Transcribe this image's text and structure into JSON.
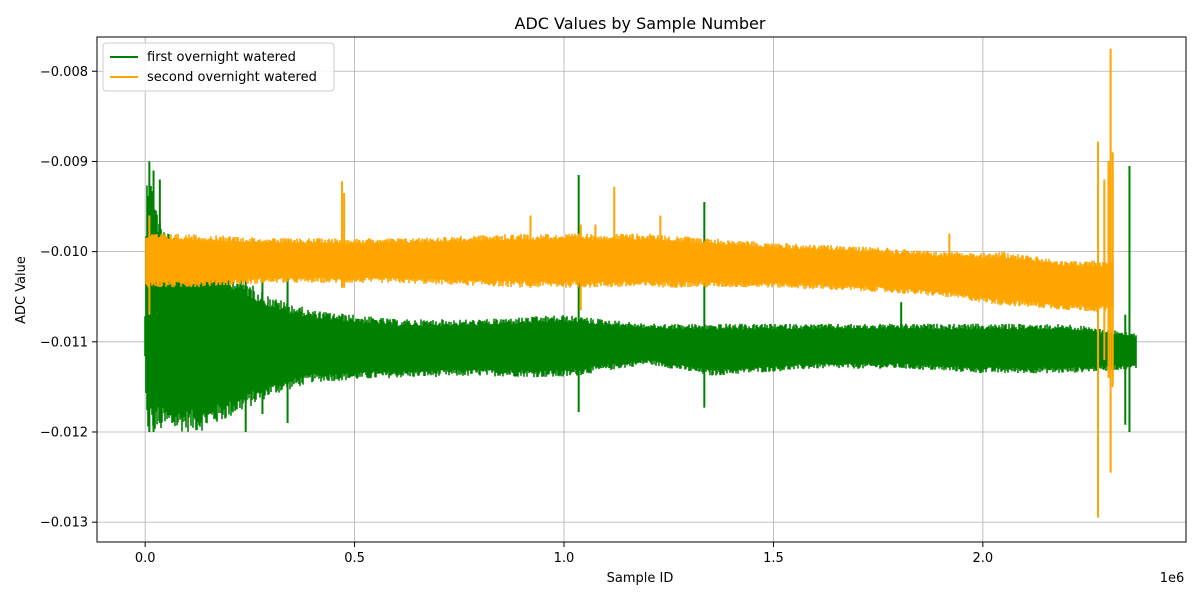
{
  "chart_data": {
    "type": "line",
    "title": "ADC Values by Sample Number",
    "xlabel": "Sample ID",
    "ylabel": "ADC Value",
    "x_multiplier_label": "1e6",
    "xlim": [
      -0.115,
      2.485
    ],
    "ylim": [
      -0.01322,
      -0.00762
    ],
    "xticks": [
      0.0,
      0.5,
      1.0,
      1.5,
      2.0
    ],
    "xtick_labels": [
      "0.0",
      "0.5",
      "1.0",
      "1.5",
      "2.0"
    ],
    "yticks": [
      -0.013,
      -0.012,
      -0.011,
      -0.01,
      -0.009,
      -0.008
    ],
    "ytick_labels": [
      "−0.013",
      "−0.012",
      "−0.011",
      "−0.010",
      "−0.009",
      "−0.008"
    ],
    "grid": true,
    "legend_position": "upper-left",
    "series": [
      {
        "name": "first overnight watered",
        "color": "#008000",
        "x_end": 2.365,
        "envelope": [
          {
            "x": 0.0,
            "lo": -0.0112,
            "hi": -0.0107
          },
          {
            "x": 0.003,
            "lo": -0.012,
            "hi": -0.009
          },
          {
            "x": 0.04,
            "lo": -0.012,
            "hi": -0.0097
          },
          {
            "x": 0.08,
            "lo": -0.012,
            "hi": -0.0099
          },
          {
            "x": 0.13,
            "lo": -0.012,
            "hi": -0.01
          },
          {
            "x": 0.2,
            "lo": -0.01185,
            "hi": -0.0102
          },
          {
            "x": 0.3,
            "lo": -0.0116,
            "hi": -0.0105
          },
          {
            "x": 0.4,
            "lo": -0.01145,
            "hi": -0.01065
          },
          {
            "x": 0.6,
            "lo": -0.0114,
            "hi": -0.01075
          },
          {
            "x": 0.8,
            "lo": -0.01138,
            "hi": -0.01075
          },
          {
            "x": 1.0,
            "lo": -0.0114,
            "hi": -0.0107
          },
          {
            "x": 1.2,
            "lo": -0.01125,
            "hi": -0.0108
          },
          {
            "x": 1.35,
            "lo": -0.01138,
            "hi": -0.0108
          },
          {
            "x": 1.6,
            "lo": -0.0113,
            "hi": -0.0108
          },
          {
            "x": 1.8,
            "lo": -0.0113,
            "hi": -0.0108
          },
          {
            "x": 2.0,
            "lo": -0.01135,
            "hi": -0.0108
          },
          {
            "x": 2.2,
            "lo": -0.01135,
            "hi": -0.0108
          },
          {
            "x": 2.365,
            "lo": -0.0113,
            "hi": -0.0109
          }
        ],
        "spikes": [
          {
            "x": 0.01,
            "lo": -0.012,
            "hi": -0.009
          },
          {
            "x": 0.02,
            "lo": -0.012,
            "hi": -0.0091
          },
          {
            "x": 0.035,
            "lo": -0.0119,
            "hi": -0.0092
          },
          {
            "x": 0.24,
            "lo": -0.012,
            "hi": -0.0101
          },
          {
            "x": 0.28,
            "lo": -0.0118,
            "hi": -0.0101
          },
          {
            "x": 0.34,
            "lo": -0.0119,
            "hi": -0.0103
          },
          {
            "x": 1.035,
            "lo": -0.01178,
            "hi": -0.00915
          },
          {
            "x": 1.335,
            "lo": -0.01173,
            "hi": -0.00945
          },
          {
            "x": 1.805,
            "lo": -0.0112,
            "hi": -0.01056
          },
          {
            "x": 2.34,
            "lo": -0.01192,
            "hi": -0.0107
          },
          {
            "x": 2.35,
            "lo": -0.012,
            "hi": -0.00905
          }
        ]
      },
      {
        "name": "second overnight watered",
        "color": "#ffa500",
        "x_end": 2.31,
        "envelope": [
          {
            "x": 0.003,
            "lo": -0.0104,
            "hi": -0.0098
          },
          {
            "x": 0.1,
            "lo": -0.0104,
            "hi": -0.0098
          },
          {
            "x": 0.3,
            "lo": -0.01035,
            "hi": -0.00985
          },
          {
            "x": 0.6,
            "lo": -0.01035,
            "hi": -0.00985
          },
          {
            "x": 0.9,
            "lo": -0.0104,
            "hi": -0.0098
          },
          {
            "x": 1.2,
            "lo": -0.0104,
            "hi": -0.0098
          },
          {
            "x": 1.5,
            "lo": -0.0104,
            "hi": -0.0099
          },
          {
            "x": 1.75,
            "lo": -0.01045,
            "hi": -0.00995
          },
          {
            "x": 1.9,
            "lo": -0.0105,
            "hi": -0.01
          },
          {
            "x": 2.05,
            "lo": -0.0106,
            "hi": -0.01
          },
          {
            "x": 2.2,
            "lo": -0.01065,
            "hi": -0.0101
          },
          {
            "x": 2.31,
            "lo": -0.01068,
            "hi": -0.0101
          }
        ],
        "spikes": [
          {
            "x": 0.01,
            "lo": -0.0107,
            "hi": -0.0096
          },
          {
            "x": 0.47,
            "lo": -0.0104,
            "hi": -0.00922
          },
          {
            "x": 0.475,
            "lo": -0.0104,
            "hi": -0.00935
          },
          {
            "x": 0.92,
            "lo": -0.0104,
            "hi": -0.0096
          },
          {
            "x": 1.04,
            "lo": -0.01065,
            "hi": -0.0097
          },
          {
            "x": 1.075,
            "lo": -0.0103,
            "hi": -0.0097
          },
          {
            "x": 1.12,
            "lo": -0.0103,
            "hi": -0.00928
          },
          {
            "x": 1.23,
            "lo": -0.0103,
            "hi": -0.0096
          },
          {
            "x": 1.92,
            "lo": -0.0104,
            "hi": -0.0098
          },
          {
            "x": 2.275,
            "lo": -0.01295,
            "hi": -0.00878
          },
          {
            "x": 2.29,
            "lo": -0.0112,
            "hi": -0.0092
          },
          {
            "x": 2.3,
            "lo": -0.0114,
            "hi": -0.009
          },
          {
            "x": 2.305,
            "lo": -0.01245,
            "hi": -0.00775
          },
          {
            "x": 2.31,
            "lo": -0.0115,
            "hi": -0.0089
          }
        ]
      }
    ]
  }
}
